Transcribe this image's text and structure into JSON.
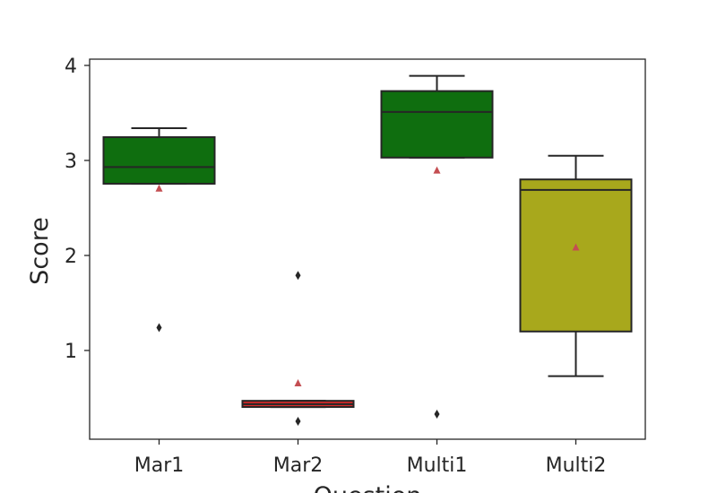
{
  "chart_data": {
    "type": "box",
    "title": "",
    "xlabel": "Question",
    "ylabel": "Score",
    "ylim": [
      0.066,
      4.066
    ],
    "yticks": [
      1,
      2,
      3,
      4
    ],
    "grid": false,
    "categories": [
      "Mar1",
      "Mar2",
      "Multi1",
      "Multi2"
    ],
    "boxes": [
      {
        "name": "Mar1",
        "whisker_low": 2.755,
        "q1": 2.755,
        "median": 2.93,
        "q3": 3.245,
        "whisker_high": 3.34,
        "mean": 2.71,
        "outliers": [
          1.24
        ],
        "color": "#0f6e0f"
      },
      {
        "name": "Mar2",
        "whisker_low": 0.405,
        "q1": 0.405,
        "median": 0.435,
        "q3": 0.47,
        "whisker_high": 0.47,
        "mean": 0.66,
        "outliers": [
          1.79,
          0.255
        ],
        "color": "#d62a2a"
      },
      {
        "name": "Multi1",
        "whisker_low": 3.03,
        "q1": 3.03,
        "median": 3.51,
        "q3": 3.73,
        "whisker_high": 3.89,
        "mean": 2.9,
        "outliers": [
          0.33
        ],
        "color": "#0f6e0f"
      },
      {
        "name": "Multi2",
        "whisker_low": 0.73,
        "q1": 1.2,
        "median": 2.69,
        "q3": 2.8,
        "whisker_high": 3.05,
        "mean": 2.09,
        "outliers": [],
        "color": "#a8a81c"
      }
    ],
    "mean_marker_color": "#c44e52"
  }
}
